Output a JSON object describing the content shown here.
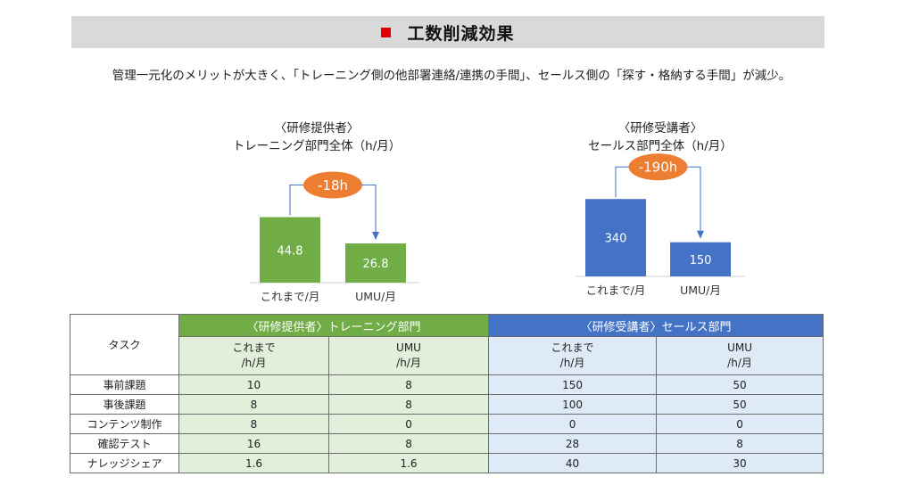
{
  "header": {
    "title": "工数削減効果",
    "bullet_color": "#e00000"
  },
  "subtitle": "管理一元化のメリットが大きく、「トレーニング側の他部署連絡/連携の手間」、セールス側の「探す・格納する手間」が減少。",
  "chart_data": [
    {
      "type": "bar",
      "title": "〈研修提供者〉",
      "subtitle": "トレーニング部門全体（h/月）",
      "categories": [
        "これまで/月",
        "UMU/月"
      ],
      "values": [
        44.8,
        26.8
      ],
      "data_labels": [
        "44.8",
        "26.8"
      ],
      "color": "#70ad47",
      "annotation": "-18h",
      "ylim": [
        0,
        50
      ]
    },
    {
      "type": "bar",
      "title": "〈研修受講者〉",
      "subtitle": "セールス部門全体（h/月）",
      "categories": [
        "これまで/月",
        "UMU/月"
      ],
      "values": [
        340,
        150
      ],
      "data_labels": [
        "340",
        "150"
      ],
      "color": "#4472c4",
      "annotation": "-190h",
      "ylim": [
        0,
        380
      ]
    }
  ],
  "table": {
    "task_header": "タスク",
    "group_headers": [
      "〈研修提供者〉トレーニング部門",
      "〈研修受講者〉セールス部門"
    ],
    "sub_headers": [
      [
        "これまで",
        "/h/月"
      ],
      [
        "UMU",
        "/h/月"
      ],
      [
        "これまで",
        "/h/月"
      ],
      [
        "UMU",
        "/h/月"
      ]
    ],
    "rows": [
      {
        "task": "事前課題",
        "values": [
          "10",
          "8",
          "150",
          "50"
        ]
      },
      {
        "task": "事後課題",
        "values": [
          "8",
          "8",
          "100",
          "50"
        ]
      },
      {
        "task": "コンテンツ制作",
        "values": [
          "8",
          "0",
          "0",
          "0"
        ]
      },
      {
        "task": "確認テスト",
        "values": [
          "16",
          "8",
          "28",
          "8"
        ]
      },
      {
        "task": "ナレッジシェア",
        "values": [
          "1.6",
          "1.6",
          "40",
          "30"
        ]
      }
    ]
  },
  "colors": {
    "green": "#70ad47",
    "blue": "#4472c4",
    "orange": "#ed7d31",
    "green_light": "#e2efda",
    "blue_light": "#deebf7"
  }
}
